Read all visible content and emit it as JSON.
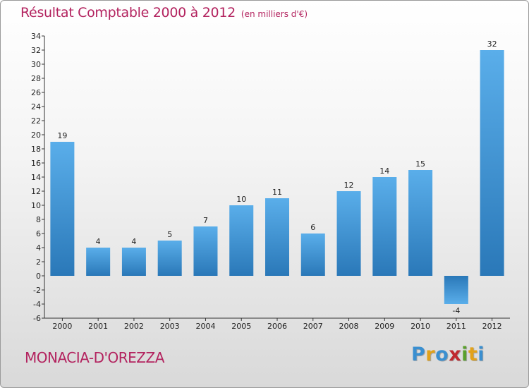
{
  "chart_data": {
    "type": "bar",
    "title": "Résultat Comptable 2000 à 2012",
    "unit_note": "(en milliers d'€)",
    "categories": [
      "2000",
      "2001",
      "2002",
      "2003",
      "2004",
      "2005",
      "2006",
      "2007",
      "2008",
      "2009",
      "2010",
      "2011",
      "2012"
    ],
    "values": [
      19,
      4,
      4,
      5,
      7,
      10,
      11,
      6,
      12,
      14,
      15,
      -4,
      32
    ],
    "ylim": [
      -6,
      34
    ],
    "ytick_step": 2,
    "xlabel": "",
    "ylabel": "",
    "grid": false,
    "bar_color": "#3e8fd4"
  },
  "footer": {
    "commune": "MONACIA-D'OREZZA",
    "logo_letters": [
      {
        "char": "P",
        "color": "#3a8fd0"
      },
      {
        "char": "r",
        "color": "#e2a21a"
      },
      {
        "char": "o",
        "color": "#3a8fd0"
      },
      {
        "char": "x",
        "color": "#c0282f"
      },
      {
        "char": "i",
        "color": "#5aa02c"
      },
      {
        "char": "t",
        "color": "#e2a21a"
      },
      {
        "char": "i",
        "color": "#3a8fd0"
      }
    ]
  }
}
